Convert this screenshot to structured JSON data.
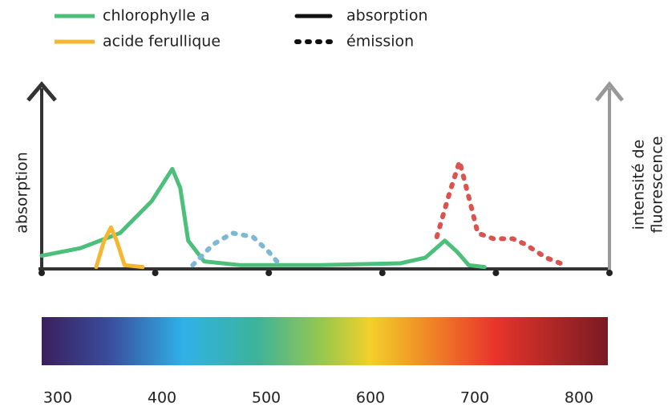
{
  "chart_data": {
    "type": "line",
    "legend": [
      {
        "label": "chlorophylle a",
        "color": "#4cbf7a"
      },
      {
        "label": "acide ferullique",
        "color": "#f5b731"
      }
    ],
    "styles": [
      {
        "label": "absorption",
        "dash": "solid"
      },
      {
        "label": "émission",
        "dash": "dotted"
      }
    ],
    "ylabel": "absorption",
    "y2label": [
      "intensité de",
      "fluorescence"
    ],
    "xlim": [
      300,
      800
    ],
    "ylim": [
      0,
      1
    ],
    "xticks": [
      300,
      400,
      500,
      600,
      700,
      800
    ],
    "series": [
      {
        "color": "#4cbf7a",
        "dash": "solid",
        "x": [
          300,
          334,
          369,
          397,
          415,
          422,
          429,
          443,
          475,
          546,
          616,
          638,
          655,
          666,
          676,
          690
        ],
        "values": [
          0.07,
          0.11,
          0.19,
          0.36,
          0.53,
          0.43,
          0.15,
          0.04,
          0.02,
          0.02,
          0.03,
          0.06,
          0.15,
          0.09,
          0.02,
          0.01
        ]
      },
      {
        "color": "#f5b731",
        "dash": "solid",
        "x": [
          348,
          355,
          361,
          366,
          373,
          389
        ],
        "values": [
          0.01,
          0.15,
          0.22,
          0.15,
          0.02,
          0.01
        ]
      },
      {
        "color": "#7fb8d4",
        "dash": "dotted",
        "x": [
          433,
          451,
          468,
          486,
          500,
          510
        ],
        "values": [
          0.02,
          0.13,
          0.19,
          0.17,
          0.09,
          0.02
        ]
      },
      {
        "color": "#d9534f",
        "dash": "dotted",
        "x": [
          648,
          659,
          668,
          677,
          684,
          698,
          715,
          726,
          744,
          761
        ],
        "values": [
          0.17,
          0.4,
          0.57,
          0.36,
          0.19,
          0.16,
          0.16,
          0.13,
          0.06,
          0.02
        ]
      }
    ]
  }
}
